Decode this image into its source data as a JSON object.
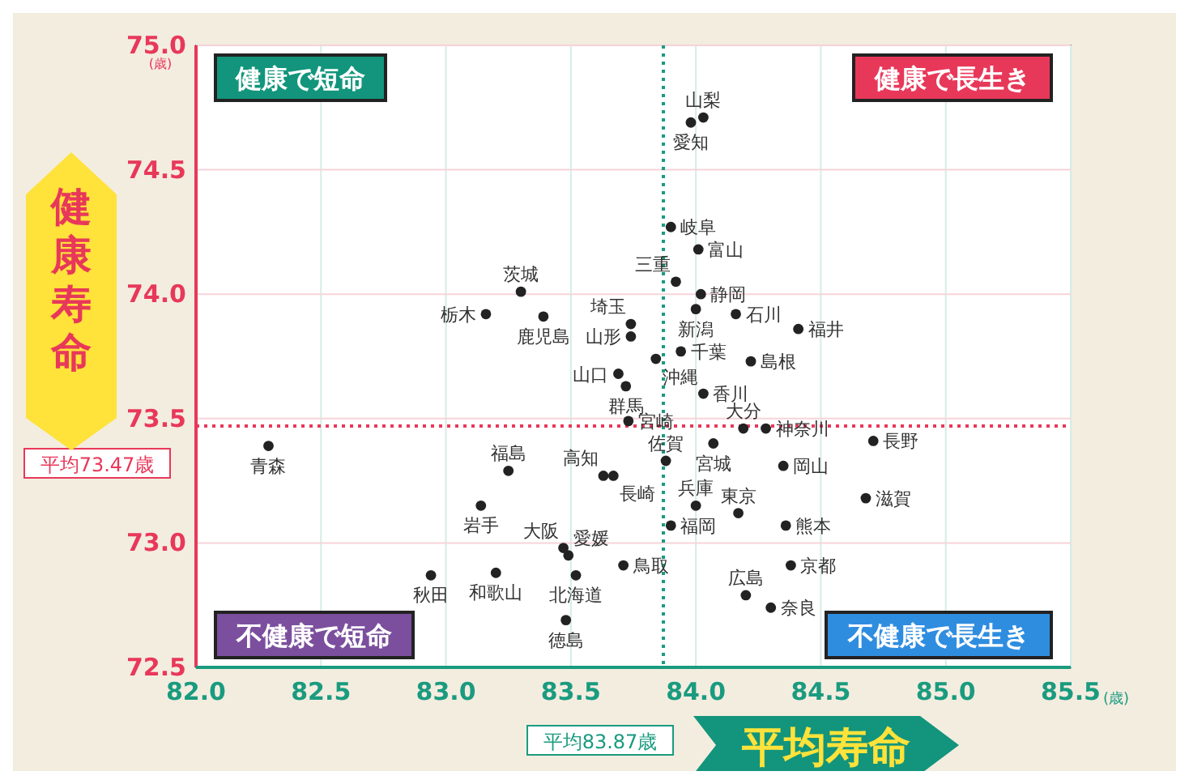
{
  "chart_data": {
    "type": "scatter",
    "xlabel": "平均寿命",
    "ylabel": "健康寿命",
    "xlim": [
      82,
      85.5
    ],
    "ylim": [
      72.5,
      75
    ],
    "xticks": [
      {
        "value": 82,
        "label": "82.0"
      },
      {
        "value": 82.5,
        "label": "82.5"
      },
      {
        "value": 83,
        "label": "83.0"
      },
      {
        "value": 83.5,
        "label": "83.5"
      },
      {
        "value": 84,
        "label": "84.0"
      },
      {
        "value": 84.5,
        "label": "84.5"
      },
      {
        "value": 85,
        "label": "85.0"
      },
      {
        "value": 85.5,
        "label": "85.5"
      }
    ],
    "yticks": [
      {
        "value": 72.5,
        "label": "72.5"
      },
      {
        "value": 73,
        "label": "73.0"
      },
      {
        "value": 73.5,
        "label": "73.5"
      },
      {
        "value": 74,
        "label": "74.0"
      },
      {
        "value": 74.5,
        "label": "74.5"
      },
      {
        "value": 75,
        "label": "75.0"
      }
    ],
    "grid": true,
    "marker": "circle",
    "series": [
      {
        "color": "#222222",
        "x": [
          84.03,
          83.98,
          83.9,
          84.01,
          83.92,
          84.02,
          84.0,
          84.16,
          84.41,
          83.94,
          84.22,
          83.74,
          83.74,
          83.84,
          83.69,
          83.3,
          83.16,
          83.39,
          84.03,
          84.19,
          84.28,
          84.71,
          84.07,
          83.88,
          84.35,
          84.68,
          84.0,
          84.17,
          83.9,
          84.36,
          83.71,
          84.38,
          84.2,
          84.3,
          83.73,
          83.72,
          82.29,
          83.25,
          83.63,
          83.67,
          83.14,
          83.47,
          83.49,
          82.94,
          83.2,
          83.52,
          83.48
        ],
        "values": [
          74.71,
          74.69,
          74.27,
          74.18,
          74.05,
          74.0,
          73.94,
          73.92,
          73.86,
          73.77,
          73.73,
          73.88,
          73.83,
          73.74,
          73.68,
          74.01,
          73.92,
          73.91,
          73.6,
          73.46,
          73.46,
          73.41,
          73.4,
          73.33,
          73.31,
          73.18,
          73.15,
          73.12,
          73.07,
          73.07,
          72.91,
          72.91,
          72.79,
          72.74,
          73.49,
          73.63,
          73.39,
          73.29,
          73.27,
          73.27,
          73.15,
          72.98,
          72.95,
          72.87,
          72.88,
          72.87,
          72.69
        ]
      }
    ],
    "ref_lines": [
      {
        "axis": "x",
        "value": 83.87,
        "label": "平均83.87歳",
        "color": "#1a9b7f",
        "line_style": "dotted"
      },
      {
        "axis": "y",
        "value": 73.47,
        "label": "平均73.47歳",
        "color": "#e8385a",
        "line_style": "dotted"
      }
    ],
    "annotations": [
      "健康で短命",
      "健康で長生き",
      "不健康で短命",
      "不健康で長生き",
      "(歳)",
      "(歳)",
      {
        "text": "山梨",
        "x": 84.03,
        "y": 74.71
      },
      {
        "text": "愛知",
        "x": 83.98,
        "y": 74.69
      },
      {
        "text": "岐阜",
        "x": 83.9,
        "y": 74.27
      },
      {
        "text": "富山",
        "x": 84.01,
        "y": 74.18
      },
      {
        "text": "三重",
        "x": 83.92,
        "y": 74.05
      },
      {
        "text": "静岡",
        "x": 84.02,
        "y": 74.0
      },
      {
        "text": "新潟",
        "x": 84.0,
        "y": 73.94
      },
      {
        "text": "石川",
        "x": 84.16,
        "y": 73.92
      },
      {
        "text": "福井",
        "x": 84.41,
        "y": 73.86
      },
      {
        "text": "千葉",
        "x": 83.94,
        "y": 73.77
      },
      {
        "text": "島根",
        "x": 84.22,
        "y": 73.73
      },
      {
        "text": "埼玉",
        "x": 83.74,
        "y": 73.88
      },
      {
        "text": "山形",
        "x": 83.74,
        "y": 73.83
      },
      {
        "text": "沖縄",
        "x": 83.84,
        "y": 73.74
      },
      {
        "text": "山口",
        "x": 83.69,
        "y": 73.68
      },
      {
        "text": "茨城",
        "x": 83.3,
        "y": 74.01
      },
      {
        "text": "栃木",
        "x": 83.16,
        "y": 73.92
      },
      {
        "text": "鹿児島",
        "x": 83.39,
        "y": 73.91
      },
      {
        "text": "香川",
        "x": 84.03,
        "y": 73.6
      },
      {
        "text": "大分",
        "x": 84.19,
        "y": 73.46
      },
      {
        "text": "神奈川",
        "x": 84.28,
        "y": 73.46
      },
      {
        "text": "長野",
        "x": 84.71,
        "y": 73.41
      },
      {
        "text": "宮城",
        "x": 84.07,
        "y": 73.4
      },
      {
        "text": "佐賀",
        "x": 83.88,
        "y": 73.33
      },
      {
        "text": "岡山",
        "x": 84.35,
        "y": 73.31
      },
      {
        "text": "滋賀",
        "x": 84.68,
        "y": 73.18
      },
      {
        "text": "兵庫",
        "x": 84.0,
        "y": 73.15
      },
      {
        "text": "東京",
        "x": 84.17,
        "y": 73.12
      },
      {
        "text": "福岡",
        "x": 83.9,
        "y": 73.07
      },
      {
        "text": "熊本",
        "x": 84.36,
        "y": 73.07
      },
      {
        "text": "鳥取",
        "x": 83.71,
        "y": 72.91
      },
      {
        "text": "京都",
        "x": 84.38,
        "y": 72.91
      },
      {
        "text": "広島",
        "x": 84.2,
        "y": 72.79
      },
      {
        "text": "奈良",
        "x": 84.3,
        "y": 72.74
      },
      {
        "text": "宮崎",
        "x": 83.73,
        "y": 73.49
      },
      {
        "text": "群馬",
        "x": 83.72,
        "y": 73.63
      },
      {
        "text": "青森",
        "x": 82.29,
        "y": 73.39
      },
      {
        "text": "福島",
        "x": 83.25,
        "y": 73.29
      },
      {
        "text": "高知",
        "x": 83.63,
        "y": 73.27
      },
      {
        "text": "長崎",
        "x": 83.67,
        "y": 73.27
      },
      {
        "text": "岩手",
        "x": 83.14,
        "y": 73.15
      },
      {
        "text": "大阪",
        "x": 83.47,
        "y": 72.98
      },
      {
        "text": "愛媛",
        "x": 83.49,
        "y": 72.95
      },
      {
        "text": "秋田",
        "x": 82.94,
        "y": 72.87
      },
      {
        "text": "和歌山",
        "x": 83.2,
        "y": 72.88
      },
      {
        "text": "北海道",
        "x": 83.52,
        "y": 72.87
      },
      {
        "text": "徳島",
        "x": 83.48,
        "y": 72.69
      }
    ]
  }
}
